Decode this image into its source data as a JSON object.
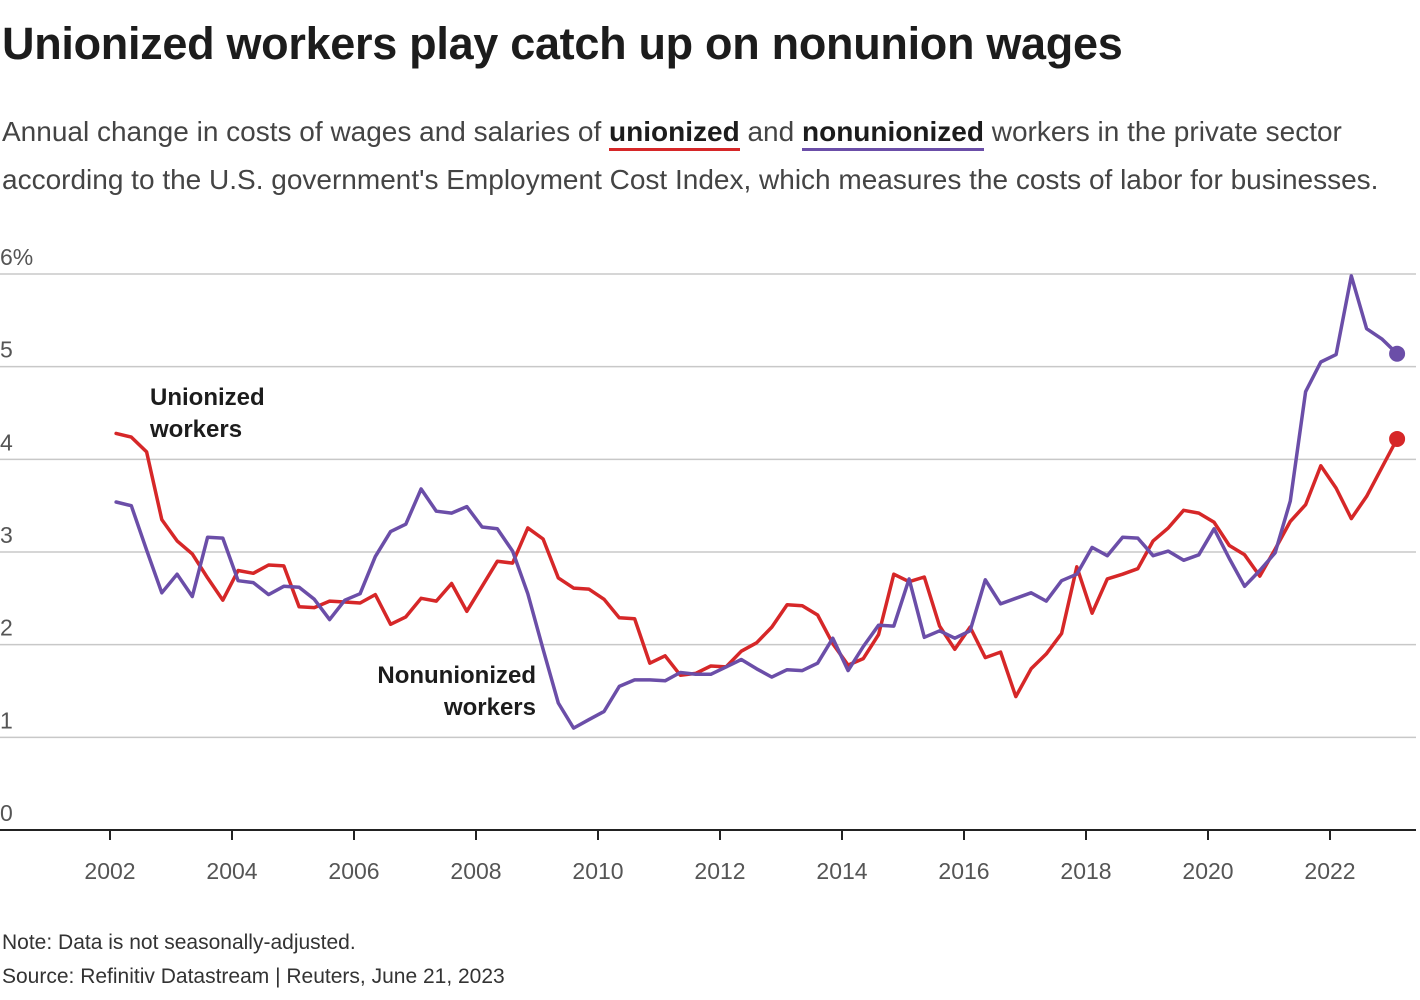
{
  "title": "Unionized workers play catch up on nonunion wages",
  "subtitle": {
    "before": "Annual change in costs of wages and salaries of ",
    "key_union": "unionized",
    "middle": " and ",
    "key_nonunion": "nonunionized",
    "after": " workers in the private sector according to the U.S. government's Employment Cost Index, which measures the costs of labor for businesses."
  },
  "notes": {
    "note": "Note: Data is not seasonally-adjusted.",
    "source": "Source: Refinitiv Datastream | Reuters, June 21, 2023"
  },
  "colors": {
    "unionized": "#d62728",
    "nonunionized": "#6b4ea8",
    "grid": "#c8c8c8",
    "axis": "#222222"
  },
  "chart_data": {
    "type": "line",
    "title": "Unionized workers play catch up on nonunion wages",
    "xlabel": "",
    "ylabel": "",
    "ylim": [
      0,
      6
    ],
    "xlim": [
      2000.5,
      2023.5
    ],
    "y_ticks": [
      0,
      1,
      2,
      3,
      4,
      5,
      6
    ],
    "y_tick_labels": [
      "0",
      "1",
      "2",
      "3",
      "4",
      "5",
      "6%"
    ],
    "x_ticks": [
      2002,
      2004,
      2006,
      2008,
      2010,
      2012,
      2014,
      2016,
      2018,
      2020,
      2022
    ],
    "x_tick_labels": [
      "2002",
      "2004",
      "2006",
      "2008",
      "2010",
      "2012",
      "2014",
      "2016",
      "2018",
      "2020",
      "2022"
    ],
    "grid": true,
    "series": [
      {
        "name": "Unionized workers",
        "label_lines": [
          "Unionized",
          "workers"
        ],
        "color": "#d62728",
        "end_marker": true,
        "x": [
          2002.1,
          2002.35,
          2002.6,
          2002.85,
          2003.1,
          2003.35,
          2003.6,
          2003.85,
          2004.1,
          2004.35,
          2004.6,
          2004.85,
          2005.1,
          2005.35,
          2005.6,
          2005.85,
          2006.1,
          2006.35,
          2006.6,
          2006.85,
          2007.1,
          2007.35,
          2007.6,
          2007.85,
          2008.1,
          2008.35,
          2008.6,
          2008.85,
          2009.1,
          2009.35,
          2009.6,
          2009.85,
          2010.1,
          2010.35,
          2010.6,
          2010.85,
          2011.1,
          2011.35,
          2011.6,
          2011.85,
          2012.1,
          2012.35,
          2012.6,
          2012.85,
          2013.1,
          2013.35,
          2013.6,
          2013.85,
          2014.1,
          2014.35,
          2014.6,
          2014.85,
          2015.1,
          2015.35,
          2015.6,
          2015.85,
          2016.1,
          2016.35,
          2016.6,
          2016.85,
          2017.1,
          2017.35,
          2017.6,
          2017.85,
          2018.1,
          2018.35,
          2018.6,
          2018.85,
          2019.1,
          2019.35,
          2019.6,
          2019.85,
          2020.1,
          2020.35,
          2020.6,
          2020.85,
          2021.1,
          2021.35,
          2021.6,
          2021.85,
          2022.1,
          2022.35,
          2022.6,
          2022.85,
          2023.1
        ],
        "values": [
          4.28,
          4.24,
          4.08,
          3.35,
          3.12,
          2.98,
          2.72,
          2.48,
          2.8,
          2.77,
          2.86,
          2.85,
          2.41,
          2.4,
          2.47,
          2.46,
          2.45,
          2.54,
          2.22,
          2.3,
          2.5,
          2.47,
          2.66,
          2.36,
          2.63,
          2.9,
          2.88,
          3.26,
          3.14,
          2.72,
          2.61,
          2.6,
          2.49,
          2.29,
          2.28,
          1.8,
          1.88,
          1.67,
          1.69,
          1.77,
          1.76,
          1.93,
          2.02,
          2.19,
          2.43,
          2.42,
          2.32,
          2.01,
          1.78,
          1.85,
          2.11,
          2.76,
          2.68,
          2.73,
          2.2,
          1.95,
          2.19,
          1.86,
          1.92,
          1.44,
          1.74,
          1.9,
          2.12,
          2.84,
          2.34,
          2.71,
          2.76,
          2.82,
          3.12,
          3.26,
          3.45,
          3.42,
          3.32,
          3.07,
          2.97,
          2.74,
          3.03,
          3.33,
          3.51,
          3.93,
          3.69,
          3.36,
          3.6,
          3.91,
          4.22
        ]
      },
      {
        "name": "Nonunionized workers",
        "label_lines": [
          "Nonunionized",
          "workers"
        ],
        "color": "#6b4ea8",
        "end_marker": true,
        "x": [
          2002.1,
          2002.35,
          2002.6,
          2002.85,
          2003.1,
          2003.35,
          2003.6,
          2003.85,
          2004.1,
          2004.35,
          2004.6,
          2004.85,
          2005.1,
          2005.35,
          2005.6,
          2005.85,
          2006.1,
          2006.35,
          2006.6,
          2006.85,
          2007.1,
          2007.35,
          2007.6,
          2007.85,
          2008.1,
          2008.35,
          2008.6,
          2008.85,
          2009.1,
          2009.35,
          2009.6,
          2009.85,
          2010.1,
          2010.35,
          2010.6,
          2010.85,
          2011.1,
          2011.35,
          2011.6,
          2011.85,
          2012.1,
          2012.35,
          2012.6,
          2012.85,
          2013.1,
          2013.35,
          2013.6,
          2013.85,
          2014.1,
          2014.35,
          2014.6,
          2014.85,
          2015.1,
          2015.35,
          2015.6,
          2015.85,
          2016.1,
          2016.35,
          2016.6,
          2016.85,
          2017.1,
          2017.35,
          2017.6,
          2017.85,
          2018.1,
          2018.35,
          2018.6,
          2018.85,
          2019.1,
          2019.35,
          2019.6,
          2019.85,
          2020.1,
          2020.35,
          2020.6,
          2020.85,
          2021.1,
          2021.35,
          2021.6,
          2021.85,
          2022.1,
          2022.35,
          2022.6,
          2022.85,
          2023.1
        ],
        "values": [
          3.54,
          3.5,
          3.02,
          2.56,
          2.76,
          2.52,
          3.16,
          3.15,
          2.69,
          2.67,
          2.54,
          2.63,
          2.62,
          2.49,
          2.27,
          2.48,
          2.55,
          2.95,
          3.22,
          3.3,
          3.68,
          3.44,
          3.42,
          3.49,
          3.27,
          3.25,
          3.01,
          2.55,
          1.95,
          1.37,
          1.1,
          1.19,
          1.28,
          1.55,
          1.62,
          1.62,
          1.61,
          1.7,
          1.68,
          1.68,
          1.76,
          1.84,
          1.74,
          1.65,
          1.73,
          1.72,
          1.8,
          2.07,
          1.72,
          1.98,
          2.21,
          2.2,
          2.71,
          2.08,
          2.15,
          2.07,
          2.15,
          2.7,
          2.44,
          2.5,
          2.56,
          2.47,
          2.69,
          2.76,
          3.05,
          2.96,
          3.16,
          3.15,
          2.96,
          3.01,
          2.91,
          2.97,
          3.25,
          2.93,
          2.63,
          2.8,
          2.99,
          3.55,
          4.73,
          5.05,
          5.13,
          5.98,
          5.41,
          5.3,
          5.14
        ]
      }
    ]
  }
}
